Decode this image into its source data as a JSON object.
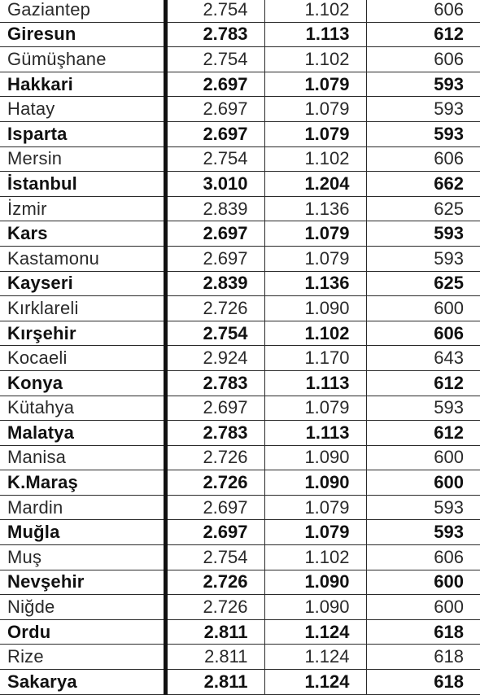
{
  "rows": [
    {
      "city": "Gaziantep",
      "a": "2.754",
      "b": "1.102",
      "c": "606",
      "bold": false
    },
    {
      "city": "Giresun",
      "a": "2.783",
      "b": "1.113",
      "c": "612",
      "bold": true
    },
    {
      "city": "Gümüşhane",
      "a": "2.754",
      "b": "1.102",
      "c": "606",
      "bold": false
    },
    {
      "city": "Hakkari",
      "a": "2.697",
      "b": "1.079",
      "c": "593",
      "bold": true
    },
    {
      "city": "Hatay",
      "a": "2.697",
      "b": "1.079",
      "c": "593",
      "bold": false
    },
    {
      "city": "Isparta",
      "a": "2.697",
      "b": "1.079",
      "c": "593",
      "bold": true
    },
    {
      "city": "Mersin",
      "a": "2.754",
      "b": "1.102",
      "c": "606",
      "bold": false
    },
    {
      "city": "İstanbul",
      "a": "3.010",
      "b": "1.204",
      "c": "662",
      "bold": true
    },
    {
      "city": "İzmir",
      "a": "2.839",
      "b": "1.136",
      "c": "625",
      "bold": false
    },
    {
      "city": "Kars",
      "a": "2.697",
      "b": "1.079",
      "c": "593",
      "bold": true
    },
    {
      "city": "Kastamonu",
      "a": "2.697",
      "b": "1.079",
      "c": "593",
      "bold": false
    },
    {
      "city": "Kayseri",
      "a": "2.839",
      "b": "1.136",
      "c": "625",
      "bold": true
    },
    {
      "city": "Kırklareli",
      "a": "2.726",
      "b": "1.090",
      "c": "600",
      "bold": false
    },
    {
      "city": "Kırşehir",
      "a": "2.754",
      "b": "1.102",
      "c": "606",
      "bold": true
    },
    {
      "city": "Kocaeli",
      "a": "2.924",
      "b": "1.170",
      "c": "643",
      "bold": false
    },
    {
      "city": "Konya",
      "a": "2.783",
      "b": "1.113",
      "c": "612",
      "bold": true
    },
    {
      "city": "Kütahya",
      "a": "2.697",
      "b": "1.079",
      "c": "593",
      "bold": false
    },
    {
      "city": "Malatya",
      "a": "2.783",
      "b": "1.113",
      "c": "612",
      "bold": true
    },
    {
      "city": "Manisa",
      "a": "2.726",
      "b": "1.090",
      "c": "600",
      "bold": false
    },
    {
      "city": "K.Maraş",
      "a": "2.726",
      "b": "1.090",
      "c": "600",
      "bold": true
    },
    {
      "city": "Mardin",
      "a": "2.697",
      "b": "1.079",
      "c": "593",
      "bold": false
    },
    {
      "city": "Muğla",
      "a": "2.697",
      "b": "1.079",
      "c": "593",
      "bold": true
    },
    {
      "city": "Muş",
      "a": "2.754",
      "b": "1.102",
      "c": "606",
      "bold": false
    },
    {
      "city": "Nevşehir",
      "a": "2.726",
      "b": "1.090",
      "c": "600",
      "bold": true
    },
    {
      "city": "Niğde",
      "a": "2.726",
      "b": "1.090",
      "c": "600",
      "bold": false
    },
    {
      "city": "Ordu",
      "a": "2.811",
      "b": "1.124",
      "c": "618",
      "bold": true
    },
    {
      "city": "Rize",
      "a": "2.811",
      "b": "1.124",
      "c": "618",
      "bold": false
    },
    {
      "city": "Sakarya",
      "a": "2.811",
      "b": "1.124",
      "c": "618",
      "bold": true
    }
  ]
}
